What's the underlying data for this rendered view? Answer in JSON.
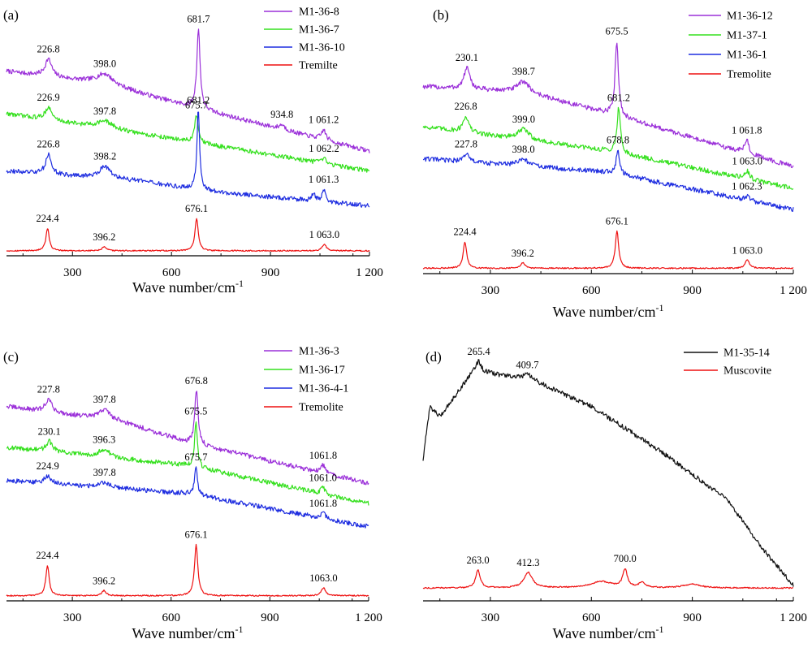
{
  "chart_data": [
    {
      "panel": "(a)",
      "type": "line",
      "xlabel": "Wave number/cm",
      "xlabel_sup": "-1",
      "xlim": [
        100,
        1200
      ],
      "xticks": [
        300,
        600,
        900,
        1200
      ],
      "xtick_labels": [
        "300",
        "600",
        "900",
        "1 200"
      ],
      "colors": {
        "M1-36-8": "#9b30d9",
        "M1-36-7": "#35e01e",
        "M1-36-10": "#1f2ee0",
        "Tremilte": "#ee1111"
      },
      "series": [
        {
          "name": "M1-36-8",
          "color": "#9b30d9",
          "baseline": [
            [
              100,
              0.74
            ],
            [
              400,
              0.69
            ],
            [
              650,
              0.6
            ],
            [
              1200,
              0.42
            ]
          ],
          "peaks": [
            [
              226.8,
              0.07,
              12
            ],
            [
              398.0,
              0.04,
              30
            ],
            [
              681.7,
              0.32,
              6
            ],
            [
              934.8,
              0.02,
              10
            ],
            [
              1061.2,
              0.04,
              8
            ]
          ],
          "labels": [
            [
              "226.8",
              226.8
            ],
            [
              "398.0",
              398.0
            ],
            [
              "681.7",
              681.7
            ],
            [
              "934.8",
              934.8
            ],
            [
              "1 061.2",
              1061.2
            ]
          ]
        },
        {
          "name": "M1-36-7",
          "color": "#35e01e",
          "baseline": [
            [
              100,
              0.57
            ],
            [
              650,
              0.46
            ],
            [
              1200,
              0.34
            ]
          ],
          "peaks": [
            [
              226.9,
              0.05,
              12
            ],
            [
              397.8,
              0.03,
              30
            ],
            [
              675.7,
              0.11,
              6
            ],
            [
              1062.2,
              0.02,
              8
            ]
          ],
          "labels": [
            [
              "226.9",
              226.9
            ],
            [
              "397.8",
              397.8
            ],
            [
              "675.7",
              675.7
            ],
            [
              "1 062.2",
              1062.2
            ]
          ]
        },
        {
          "name": "M1-36-10",
          "color": "#1f2ee0",
          "baseline": [
            [
              100,
              0.34
            ],
            [
              500,
              0.3
            ],
            [
              700,
              0.26
            ],
            [
              1200,
              0.2
            ]
          ],
          "peaks": [
            [
              226.8,
              0.08,
              10
            ],
            [
              398.2,
              0.05,
              20
            ],
            [
              681.2,
              0.32,
              5
            ],
            [
              1030,
              0.03,
              6
            ],
            [
              1061.3,
              0.05,
              6
            ]
          ],
          "labels": [
            [
              "226.8",
              226.8
            ],
            [
              "398.2",
              398.2
            ],
            [
              "681.2",
              681.2
            ],
            [
              "1 061.3",
              1061.3
            ]
          ]
        },
        {
          "name": "Tremilte",
          "color": "#ee1111",
          "baseline": [
            [
              100,
              0.02
            ],
            [
              1200,
              0.02
            ]
          ],
          "peaks": [
            [
              224.4,
              0.09,
              6
            ],
            [
              396.2,
              0.015,
              8
            ],
            [
              676.1,
              0.13,
              6
            ],
            [
              1063.0,
              0.025,
              8
            ]
          ],
          "labels": [
            [
              "224.4",
              224.4
            ],
            [
              "396.2",
              396.2
            ],
            [
              "676.1",
              676.1
            ],
            [
              "1 063.0",
              1063.0
            ]
          ]
        }
      ]
    },
    {
      "panel": "(b)",
      "type": "line",
      "xlabel": "Wave number/cm",
      "xlabel_sup": "-1",
      "xlim": [
        100,
        1200
      ],
      "xticks": [
        300,
        600,
        900,
        1200
      ],
      "xtick_labels": [
        "300",
        "600",
        "900",
        "1 200"
      ],
      "colors": {
        "M1-36-12": "#9b30d9",
        "M1-37-1": "#35e01e",
        "M1-36-1": "#1f2ee0",
        "Tremolite": "#ee1111"
      },
      "series": [
        {
          "name": "M1-36-12",
          "color": "#9b30d9",
          "baseline": [
            [
              100,
              0.7
            ],
            [
              400,
              0.68
            ],
            [
              650,
              0.6
            ],
            [
              1200,
              0.4
            ]
          ],
          "peaks": [
            [
              230.1,
              0.08,
              10
            ],
            [
              398.7,
              0.04,
              20
            ],
            [
              675.5,
              0.28,
              6
            ],
            [
              1061.8,
              0.05,
              8
            ]
          ],
          "labels": [
            [
              "230.1",
              230.1
            ],
            [
              "398.7",
              398.7
            ],
            [
              "675.5",
              675.5
            ],
            [
              "1 061.8",
              1061.8
            ]
          ]
        },
        {
          "name": "M1-37-1",
          "color": "#35e01e",
          "baseline": [
            [
              100,
              0.55
            ],
            [
              650,
              0.46
            ],
            [
              1200,
              0.32
            ]
          ],
          "peaks": [
            [
              226.8,
              0.06,
              10
            ],
            [
              399.0,
              0.04,
              20
            ],
            [
              681.2,
              0.17,
              6
            ],
            [
              1063.0,
              0.03,
              8
            ]
          ],
          "labels": [
            [
              "226.8",
              226.8
            ],
            [
              "399.0",
              399.0
            ],
            [
              "681.2",
              681.2
            ],
            [
              "1 063.0",
              1063.0
            ]
          ]
        },
        {
          "name": "M1-36-1",
          "color": "#1f2ee0",
          "baseline": [
            [
              100,
              0.43
            ],
            [
              650,
              0.38
            ],
            [
              1200,
              0.24
            ]
          ],
          "peaks": [
            [
              227.8,
              0.03,
              10
            ],
            [
              398.0,
              0.025,
              20
            ],
            [
              678.8,
              0.09,
              6
            ],
            [
              1062.3,
              0.015,
              8
            ]
          ],
          "labels": [
            [
              "227.8",
              227.8
            ],
            [
              "398.0",
              398.0
            ],
            [
              "678.8",
              678.8
            ],
            [
              "1 062.3",
              1062.3
            ]
          ]
        },
        {
          "name": "Tremolite",
          "color": "#ee1111",
          "baseline": [
            [
              100,
              0.02
            ],
            [
              1200,
              0.02
            ]
          ],
          "peaks": [
            [
              224.4,
              0.1,
              6
            ],
            [
              396.2,
              0.02,
              8
            ],
            [
              676.1,
              0.14,
              6
            ],
            [
              1063.0,
              0.03,
              8
            ]
          ],
          "labels": [
            [
              "224.4",
              224.4
            ],
            [
              "396.2",
              396.2
            ],
            [
              "676.1",
              676.1
            ],
            [
              "1 063.0",
              1063.0
            ]
          ]
        }
      ]
    },
    {
      "panel": "(c)",
      "type": "line",
      "xlabel": "Wave number/cm",
      "xlabel_sup": "-1",
      "xlim": [
        100,
        1200
      ],
      "xticks": [
        300,
        600,
        900,
        1200
      ],
      "xtick_labels": [
        "300",
        "600",
        "900",
        "1 200"
      ],
      "colors": {
        "M1-36-3": "#9b30d9",
        "M1-36-17": "#35e01e",
        "M1-36-4-1": "#1f2ee0",
        "Tremolite": "#ee1111"
      },
      "series": [
        {
          "name": "M1-36-3",
          "color": "#9b30d9",
          "baseline": [
            [
              100,
              0.76
            ],
            [
              450,
              0.7
            ],
            [
              650,
              0.62
            ],
            [
              1200,
              0.46
            ]
          ],
          "peaks": [
            [
              227.8,
              0.05,
              12
            ],
            [
              397.8,
              0.04,
              20
            ],
            [
              676.8,
              0.21,
              6
            ],
            [
              1061.8,
              0.03,
              8
            ]
          ],
          "labels": [
            [
              "227.8",
              227.8
            ],
            [
              "397.8",
              397.8
            ],
            [
              "676.8",
              676.8
            ],
            [
              "1061.8",
              1061.8
            ]
          ]
        },
        {
          "name": "M1-36-17",
          "color": "#35e01e",
          "baseline": [
            [
              100,
              0.6
            ],
            [
              650,
              0.53
            ],
            [
              1200,
              0.38
            ]
          ],
          "peaks": [
            [
              230.1,
              0.04,
              12
            ],
            [
              396.3,
              0.03,
              20
            ],
            [
              675.5,
              0.18,
              5
            ],
            [
              1061.0,
              0.025,
              8
            ]
          ],
          "labels": [
            [
              "230.1",
              230.1
            ],
            [
              "396.3",
              396.3
            ],
            [
              "675.5",
              675.5
            ],
            [
              "1061.0",
              1061.0
            ]
          ]
        },
        {
          "name": "M1-36-4-1",
          "color": "#1f2ee0",
          "baseline": [
            [
              100,
              0.47
            ],
            [
              650,
              0.42
            ],
            [
              1200,
              0.29
            ]
          ],
          "peaks": [
            [
              224.9,
              0.03,
              12
            ],
            [
              397.8,
              0.02,
              20
            ],
            [
              675.7,
              0.11,
              5
            ],
            [
              1061.8,
              0.02,
              8
            ]
          ],
          "labels": [
            [
              "224.9",
              224.9
            ],
            [
              "397.8",
              397.8
            ],
            [
              "675.7",
              675.7
            ],
            [
              "1061.8",
              1061.8
            ]
          ]
        },
        {
          "name": "Tremolite",
          "color": "#ee1111",
          "baseline": [
            [
              100,
              0.02
            ],
            [
              1200,
              0.02
            ]
          ],
          "peaks": [
            [
              224.4,
              0.12,
              6
            ],
            [
              396.2,
              0.02,
              8
            ],
            [
              676.1,
              0.2,
              6
            ],
            [
              1063.0,
              0.03,
              8
            ]
          ],
          "labels": [
            [
              "224.4",
              224.4
            ],
            [
              "396.2",
              396.2
            ],
            [
              "676.1",
              676.1
            ],
            [
              "1063.0",
              1063.0
            ]
          ]
        }
      ]
    },
    {
      "panel": "(d)",
      "type": "line",
      "xlabel": "Wave number/cm",
      "xlabel_sup": "-1",
      "xlim": [
        100,
        1200
      ],
      "xticks": [
        300,
        600,
        900,
        1200
      ],
      "xtick_labels": [
        "300",
        "600",
        "900",
        "1 200"
      ],
      "colors": {
        "M1-35-14": "#111111",
        "Muscovite": "#ee1111"
      },
      "series": [
        {
          "name": "M1-35-14",
          "color": "#111111",
          "baseline": [
            [
              100,
              0.55
            ],
            [
              120,
              0.76
            ],
            [
              150,
              0.72
            ],
            [
              250,
              0.9
            ],
            [
              300,
              0.89
            ],
            [
              430,
              0.86
            ],
            [
              600,
              0.76
            ],
            [
              800,
              0.59
            ],
            [
              1000,
              0.4
            ],
            [
              1100,
              0.22
            ],
            [
              1200,
              0.06
            ]
          ],
          "peaks": [
            [
              265.4,
              0.04,
              8
            ],
            [
              409.7,
              0.02,
              15
            ]
          ],
          "labels": [
            [
              "265.4",
              265.4
            ],
            [
              "409.7",
              409.7
            ]
          ]
        },
        {
          "name": "Muscovite",
          "color": "#ee1111",
          "baseline": [
            [
              100,
              0.05
            ],
            [
              1200,
              0.05
            ]
          ],
          "peaks": [
            [
              263.0,
              0.07,
              8
            ],
            [
              412.3,
              0.06,
              15
            ],
            [
              630,
              0.025,
              40
            ],
            [
              700.0,
              0.07,
              8
            ],
            [
              750,
              0.02,
              10
            ],
            [
              900,
              0.015,
              30
            ]
          ],
          "labels": [
            [
              "263.0",
              263.0
            ],
            [
              "412.3",
              412.3
            ],
            [
              "700.0",
              700.0
            ]
          ]
        }
      ]
    }
  ]
}
